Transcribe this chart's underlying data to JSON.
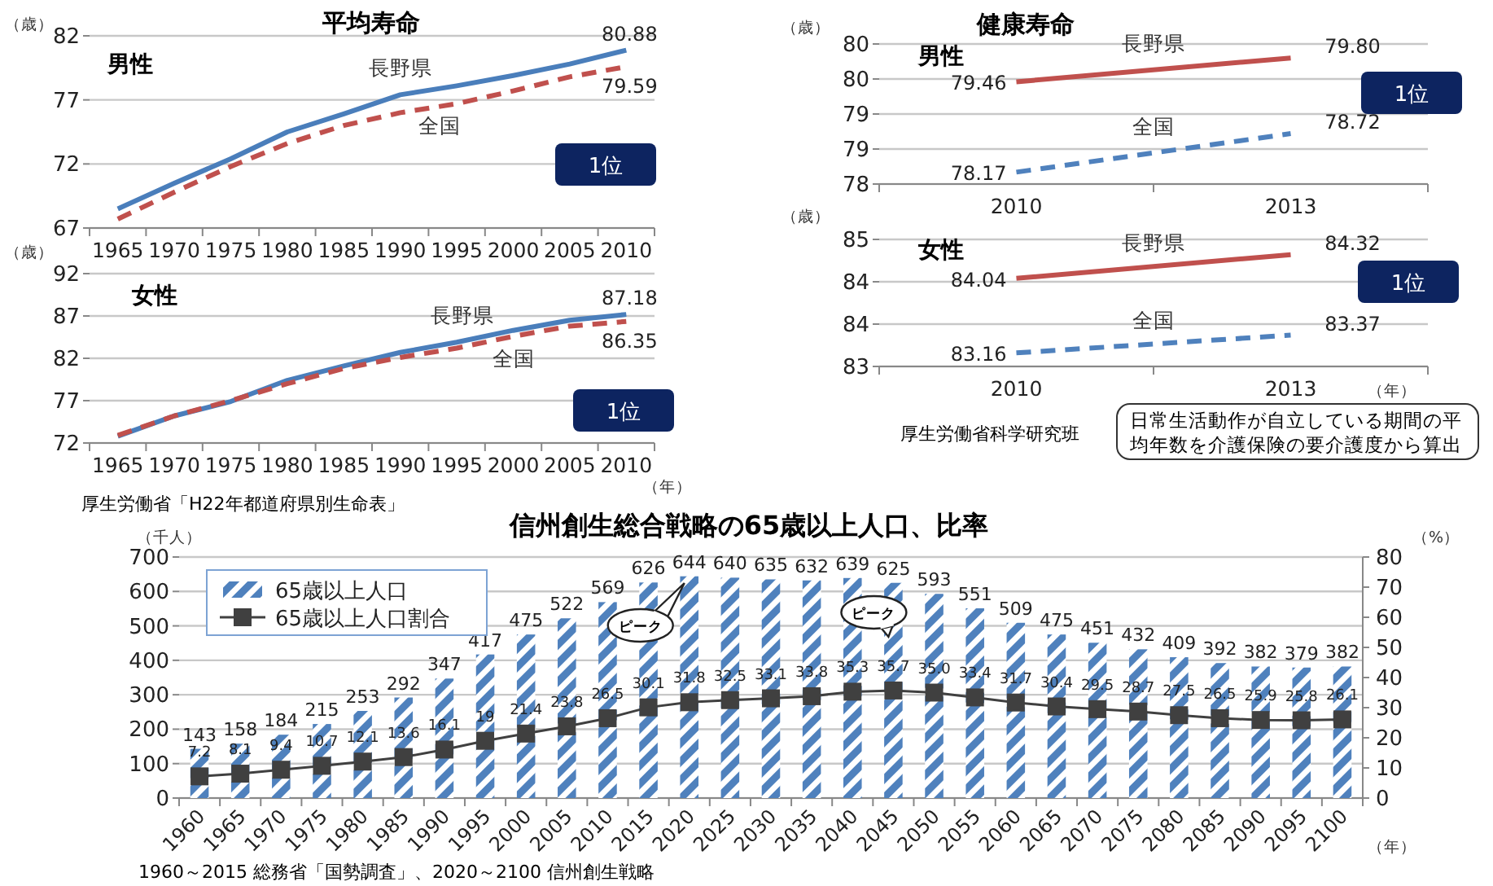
{
  "chart_data": [
    {
      "type": "line",
      "title": "平均寿命",
      "ylabel": "（歳）",
      "categories": [
        "1965",
        "1970",
        "1975",
        "1980",
        "1985",
        "1990",
        "1995",
        "2000",
        "2005",
        "2010"
      ],
      "ylim": [
        67,
        82
      ],
      "yticks": [
        67,
        72,
        77,
        82
      ],
      "grid": "y",
      "series": [
        {
          "name": "長野県",
          "color": "#4a7ebb",
          "line_style": "solid",
          "values": [
            68.5,
            70.5,
            72.4,
            74.5,
            75.9,
            77.4,
            78.1,
            78.9,
            79.8,
            80.88
          ],
          "value_labels": [
            null,
            null,
            null,
            null,
            null,
            null,
            null,
            null,
            null,
            "80.88"
          ]
        },
        {
          "name": "全国",
          "color": "#c0504d",
          "line_style": "dashed",
          "values": [
            67.7,
            69.8,
            71.8,
            73.6,
            75.0,
            76.0,
            76.7,
            77.7,
            78.8,
            79.59
          ],
          "value_labels": [
            null,
            null,
            null,
            null,
            null,
            null,
            null,
            null,
            null,
            "79.59"
          ]
        }
      ],
      "annotations": [
        "男性",
        "1位"
      ]
    },
    {
      "type": "line",
      "ylabel": "（歳）",
      "xlabel": "（年）",
      "categories": [
        "1965",
        "1970",
        "1975",
        "1980",
        "1985",
        "1990",
        "1995",
        "2000",
        "2005",
        "2010"
      ],
      "ylim": [
        72,
        92
      ],
      "yticks": [
        72,
        77,
        82,
        87,
        92
      ],
      "grid": "y",
      "series": [
        {
          "name": "長野県",
          "color": "#4a7ebb",
          "line_style": "solid",
          "values": [
            72.8,
            75.2,
            76.9,
            79.4,
            81.1,
            82.7,
            83.9,
            85.3,
            86.5,
            87.18
          ],
          "value_labels": [
            null,
            null,
            null,
            null,
            null,
            null,
            null,
            null,
            null,
            "87.18"
          ]
        },
        {
          "name": "全国",
          "color": "#c0504d",
          "line_style": "dashed",
          "values": [
            72.9,
            75.2,
            77.0,
            79.0,
            80.8,
            82.1,
            83.2,
            84.6,
            85.8,
            86.35
          ],
          "value_labels": [
            null,
            null,
            null,
            null,
            null,
            null,
            null,
            null,
            null,
            "86.35"
          ]
        }
      ],
      "annotations": [
        "女性",
        "1位",
        "厚生労働省「H22年都道府県別生命表」"
      ]
    },
    {
      "type": "line",
      "title": "健康寿命",
      "ylabel": "（歳）",
      "categories": [
        "2010",
        "2013"
      ],
      "ylim": [
        78,
        80
      ],
      "yticks": [
        78,
        {
          "value": 78.5,
          "label": "79"
        },
        79,
        {
          "value": 79.5,
          "label": "80"
        },
        80
      ],
      "grid": "y",
      "series": [
        {
          "name": "長野県",
          "color": "#c0504d",
          "line_style": "solid",
          "values": [
            79.46,
            79.8
          ],
          "value_labels": [
            "79.46",
            "79.80"
          ]
        },
        {
          "name": "全国",
          "color": "#4f81bd",
          "line_style": "dashed",
          "values": [
            78.17,
            78.72
          ],
          "value_labels": [
            "78.17",
            "78.72"
          ]
        }
      ],
      "annotations": [
        "男性",
        "1位"
      ]
    },
    {
      "type": "line",
      "ylabel": "（歳）",
      "xlabel": "（年）",
      "categories": [
        "2010",
        "2013"
      ],
      "ylim": [
        83,
        84.5
      ],
      "yticks": [
        83,
        {
          "value": 83.5,
          "label": "84"
        },
        84,
        {
          "value": 84.5,
          "label": "85"
        }
      ],
      "grid": "y",
      "series": [
        {
          "name": "長野県",
          "color": "#c0504d",
          "line_style": "solid",
          "values": [
            84.04,
            84.32
          ],
          "value_labels": [
            "84.04",
            "84.32"
          ]
        },
        {
          "name": "全国",
          "color": "#4f81bd",
          "line_style": "dashed",
          "values": [
            83.16,
            83.37
          ],
          "value_labels": [
            "83.16",
            "83.37"
          ]
        }
      ],
      "annotations": [
        "女性",
        "1位",
        "厚生労働省科学研究班",
        "日常生活動作が自立している期間の平均年数を介護保険の要介護度から算出"
      ]
    },
    {
      "type": "bar",
      "title": "信州創生総合戦略の65歳以上人口、比率",
      "ylabel": "（千人）",
      "y2label": "（%）",
      "xlabel": "（年）",
      "categories": [
        "1960",
        "1965",
        "1970",
        "1975",
        "1980",
        "1985",
        "1990",
        "1995",
        "2000",
        "2005",
        "2010",
        "2015",
        "2020",
        "2025",
        "2030",
        "2035",
        "2040",
        "2045",
        "2050",
        "2055",
        "2060",
        "2065",
        "2070",
        "2075",
        "2080",
        "2085",
        "2090",
        "2095",
        "2100"
      ],
      "ylim": [
        0,
        700
      ],
      "yticks": [
        0,
        100,
        200,
        300,
        400,
        500,
        600,
        700
      ],
      "y2lim": [
        0,
        80
      ],
      "y2ticks": [
        0,
        10,
        20,
        30,
        40,
        50,
        60,
        70,
        80
      ],
      "grid": "y",
      "legend": "top left",
      "marker": "square",
      "series": [
        {
          "name": "65歳以上人口",
          "color": "#4f81bd",
          "values": [
            143,
            158,
            184,
            215,
            253,
            292,
            347,
            417,
            475,
            522,
            569,
            626,
            644,
            640,
            635,
            632,
            639,
            625,
            593,
            551,
            509,
            475,
            451,
            432,
            409,
            392,
            382,
            379,
            382
          ],
          "value_labels": [
            "143",
            "158",
            "184",
            "215",
            "253",
            "292",
            "347",
            "417",
            "475",
            "522",
            "569",
            "626",
            "644",
            "640",
            "635",
            "632",
            "639",
            "625",
            "593",
            "551",
            "509",
            "475",
            "451",
            "432",
            "409",
            "392",
            "382",
            "379",
            "382"
          ]
        },
        {
          "name": "65歳以上人口割合",
          "type": "line",
          "axis": "y2",
          "color": "#404040",
          "values": [
            7.2,
            8.1,
            9.4,
            10.7,
            12.1,
            13.6,
            16.1,
            19,
            21.4,
            23.8,
            26.5,
            30.1,
            31.8,
            32.5,
            33.1,
            33.8,
            35.3,
            35.7,
            35.0,
            33.4,
            31.7,
            30.4,
            29.5,
            28.7,
            27.5,
            26.5,
            25.9,
            25.8,
            26.1
          ],
          "value_labels": [
            "7.2",
            "8.1",
            "9.4",
            "10.7",
            "12.1",
            "13.6",
            "16.1",
            "19",
            "21.4",
            "23.8",
            "26.5",
            "30.1",
            "31.8",
            "32.5",
            "33.1",
            "33.8",
            "35.3",
            "35.7",
            "35.0",
            "33.4",
            "31.7",
            "30.4",
            "29.5",
            "28.7",
            "27.5",
            "26.5",
            "25.9",
            "25.8",
            "26.1"
          ]
        }
      ],
      "annotations": [
        "ピーク",
        "ピーク",
        "1960～2015 総務省「国勢調査」、2020～2100 信州創生戦略"
      ]
    }
  ]
}
